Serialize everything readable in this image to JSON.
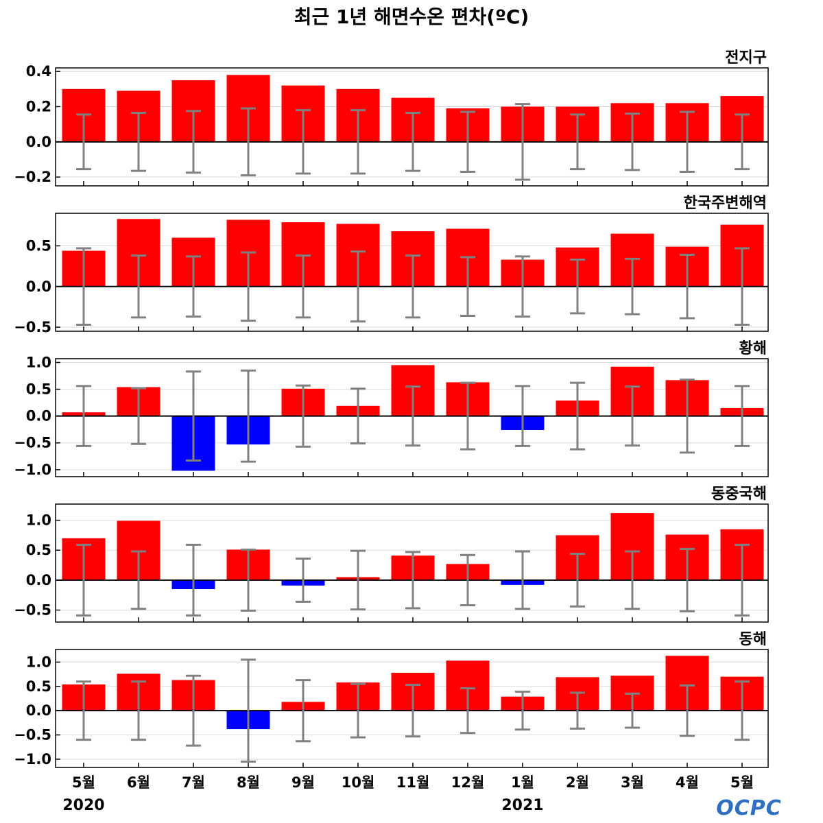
{
  "title": "최근 1년 해면수온 편차(ºC)",
  "logo_text": "OCPC",
  "colors": {
    "positive": "#ff0000",
    "negative": "#0000ff",
    "errorbar": "#808080",
    "grid": "#d9d9d9",
    "logo": "#2f6fc2"
  },
  "chart_data": {
    "type": "bar",
    "categories": [
      "5월",
      "6월",
      "7월",
      "8월",
      "9월",
      "10월",
      "11월",
      "12월",
      "1월",
      "2월",
      "3월",
      "4월",
      "5월"
    ],
    "year_labels": [
      {
        "category_index": 0,
        "label": "2020"
      },
      {
        "category_index": 8,
        "label": "2021"
      }
    ],
    "panels": [
      {
        "title": "전지구",
        "ylim": [
          -0.25,
          0.42
        ],
        "yticks": [
          -0.2,
          0.0,
          0.2,
          0.4
        ],
        "tick_labels": [
          "−0.2",
          "0.0",
          "0.2",
          "0.4"
        ],
        "values": [
          0.3,
          0.29,
          0.35,
          0.38,
          0.32,
          0.3,
          0.25,
          0.19,
          0.2,
          0.2,
          0.22,
          0.22,
          0.26
        ],
        "error": [
          0.155,
          0.165,
          0.175,
          0.19,
          0.18,
          0.18,
          0.165,
          0.17,
          0.215,
          0.155,
          0.16,
          0.17,
          0.155
        ]
      },
      {
        "title": "한국주변해역",
        "ylim": [
          -0.55,
          0.9
        ],
        "yticks": [
          -0.5,
          0.0,
          0.5
        ],
        "tick_labels": [
          "−0.5",
          "0.0",
          "0.5"
        ],
        "values": [
          0.44,
          0.83,
          0.6,
          0.82,
          0.79,
          0.77,
          0.68,
          0.71,
          0.33,
          0.48,
          0.65,
          0.49,
          0.76
        ],
        "error": [
          0.47,
          0.38,
          0.37,
          0.42,
          0.38,
          0.43,
          0.38,
          0.36,
          0.37,
          0.33,
          0.34,
          0.39,
          0.47
        ]
      },
      {
        "title": "황해",
        "ylim": [
          -1.13,
          1.07
        ],
        "yticks": [
          -1.0,
          -0.5,
          0.0,
          0.5,
          1.0
        ],
        "tick_labels": [
          "−1.0",
          "−0.5",
          "0.0",
          "0.5",
          "1.0"
        ],
        "values": [
          0.07,
          0.54,
          -1.02,
          -0.53,
          0.51,
          0.19,
          0.95,
          0.63,
          -0.26,
          0.29,
          0.92,
          0.67,
          0.15
        ],
        "error": [
          0.56,
          0.52,
          0.83,
          0.85,
          0.57,
          0.51,
          0.55,
          0.62,
          0.56,
          0.62,
          0.55,
          0.68,
          0.56
        ]
      },
      {
        "title": "동중국해",
        "ylim": [
          -0.7,
          1.27
        ],
        "yticks": [
          -0.5,
          0.0,
          0.5,
          1.0
        ],
        "tick_labels": [
          "−0.5",
          "0.0",
          "0.5",
          "1.0"
        ],
        "values": [
          0.7,
          0.99,
          -0.15,
          0.51,
          -0.09,
          0.05,
          0.41,
          0.27,
          -0.08,
          0.75,
          1.12,
          0.76,
          0.85
        ],
        "error": [
          0.59,
          0.48,
          0.59,
          0.51,
          0.36,
          0.49,
          0.47,
          0.42,
          0.48,
          0.44,
          0.48,
          0.52,
          0.59
        ]
      },
      {
        "title": "동해",
        "ylim": [
          -1.17,
          1.26
        ],
        "yticks": [
          -1.0,
          -0.5,
          0.0,
          0.5,
          1.0
        ],
        "tick_labels": [
          "−1.0",
          "−0.5",
          "0.0",
          "0.5",
          "1.0"
        ],
        "values": [
          0.54,
          0.76,
          0.63,
          -0.38,
          0.18,
          0.58,
          0.78,
          1.03,
          0.29,
          0.69,
          0.72,
          1.13,
          0.7
        ],
        "error": [
          0.6,
          0.6,
          0.72,
          1.05,
          0.63,
          0.55,
          0.53,
          0.46,
          0.39,
          0.37,
          0.35,
          0.52,
          0.6
        ]
      }
    ]
  }
}
